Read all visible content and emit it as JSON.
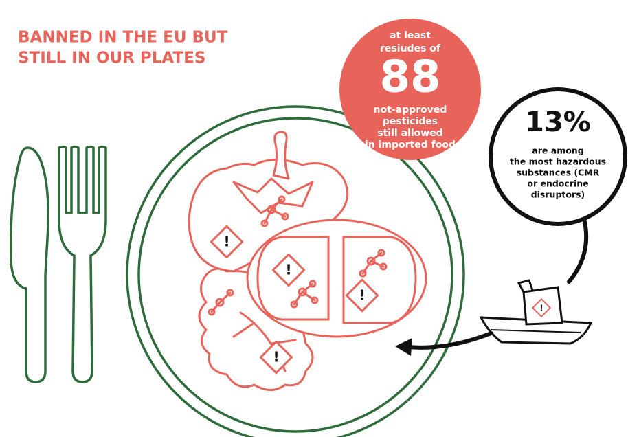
{
  "title": [
    "BANNED IN THE EU BUT",
    "STILL IN OUR PLATES"
  ],
  "red_circle": {
    "top": [
      "at least",
      "resiudes of"
    ],
    "number": "88",
    "bottom": [
      "not-approved",
      "pesticides",
      "still allowed",
      "in imported food"
    ]
  },
  "black_circle": {
    "number": "13%",
    "lines": [
      "are among",
      "the most hazardous",
      "substances (CMR",
      "or endocrine",
      "disruptors)"
    ]
  }
}
